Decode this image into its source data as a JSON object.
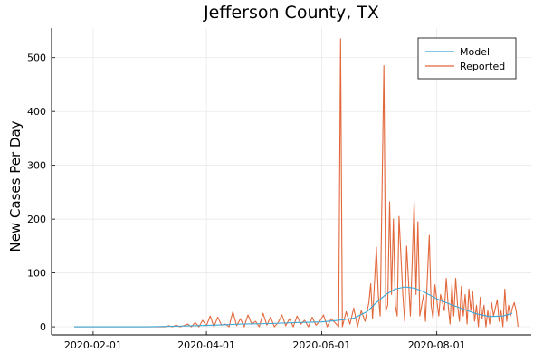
{
  "chart_data": {
    "type": "line",
    "title": "Jefferson County, TX",
    "xlabel": "",
    "ylabel": "New Cases Per Day",
    "x_axis": {
      "type": "date",
      "range": [
        "2020-01-10",
        "2020-09-20"
      ],
      "ticks": [
        "2020-02-01",
        "2020-04-01",
        "2020-06-01",
        "2020-08-01"
      ]
    },
    "ylim": [
      -15,
      555
    ],
    "y_ticks": [
      0,
      100,
      200,
      300,
      400,
      500
    ],
    "grid": true,
    "legend": {
      "placement": "top-right",
      "entries": [
        "Model",
        "Reported"
      ]
    },
    "series": [
      {
        "name": "Model",
        "color": "#3aa7d6",
        "points": [
          [
            "2020-01-22",
            0
          ],
          [
            "2020-03-01",
            0
          ],
          [
            "2020-03-15",
            1
          ],
          [
            "2020-03-25",
            2
          ],
          [
            "2020-04-05",
            3
          ],
          [
            "2020-04-20",
            5
          ],
          [
            "2020-05-05",
            6
          ],
          [
            "2020-05-20",
            8
          ],
          [
            "2020-06-01",
            9
          ],
          [
            "2020-06-10",
            12
          ],
          [
            "2020-06-18",
            16
          ],
          [
            "2020-06-25",
            28
          ],
          [
            "2020-06-30",
            45
          ],
          [
            "2020-07-05",
            60
          ],
          [
            "2020-07-10",
            70
          ],
          [
            "2020-07-15",
            74
          ],
          [
            "2020-07-20",
            72
          ],
          [
            "2020-07-25",
            65
          ],
          [
            "2020-08-01",
            52
          ],
          [
            "2020-08-08",
            42
          ],
          [
            "2020-08-15",
            33
          ],
          [
            "2020-08-22",
            24
          ],
          [
            "2020-08-29",
            19
          ],
          [
            "2020-09-05",
            20
          ],
          [
            "2020-09-10",
            25
          ]
        ]
      },
      {
        "name": "Reported",
        "color": "#e2683c",
        "points": [
          [
            "2020-01-22",
            0
          ],
          [
            "2020-03-01",
            0
          ],
          [
            "2020-03-10",
            0
          ],
          [
            "2020-03-12",
            2
          ],
          [
            "2020-03-14",
            0
          ],
          [
            "2020-03-16",
            3
          ],
          [
            "2020-03-18",
            0
          ],
          [
            "2020-03-20",
            2
          ],
          [
            "2020-03-22",
            5
          ],
          [
            "2020-03-24",
            0
          ],
          [
            "2020-03-26",
            8
          ],
          [
            "2020-03-28",
            0
          ],
          [
            "2020-03-30",
            12
          ],
          [
            "2020-04-01",
            2
          ],
          [
            "2020-04-03",
            20
          ],
          [
            "2020-04-05",
            0
          ],
          [
            "2020-04-07",
            18
          ],
          [
            "2020-04-09",
            3
          ],
          [
            "2020-04-11",
            5
          ],
          [
            "2020-04-13",
            0
          ],
          [
            "2020-04-15",
            28
          ],
          [
            "2020-04-17",
            2
          ],
          [
            "2020-04-19",
            15
          ],
          [
            "2020-04-21",
            0
          ],
          [
            "2020-04-23",
            22
          ],
          [
            "2020-04-25",
            5
          ],
          [
            "2020-04-27",
            10
          ],
          [
            "2020-04-29",
            0
          ],
          [
            "2020-05-01",
            25
          ],
          [
            "2020-05-03",
            3
          ],
          [
            "2020-05-05",
            18
          ],
          [
            "2020-05-07",
            0
          ],
          [
            "2020-05-09",
            8
          ],
          [
            "2020-05-11",
            22
          ],
          [
            "2020-05-13",
            2
          ],
          [
            "2020-05-15",
            15
          ],
          [
            "2020-05-17",
            0
          ],
          [
            "2020-05-19",
            20
          ],
          [
            "2020-05-21",
            5
          ],
          [
            "2020-05-23",
            12
          ],
          [
            "2020-05-25",
            0
          ],
          [
            "2020-05-27",
            18
          ],
          [
            "2020-05-29",
            3
          ],
          [
            "2020-05-31",
            10
          ],
          [
            "2020-06-02",
            22
          ],
          [
            "2020-06-04",
            0
          ],
          [
            "2020-06-06",
            15
          ],
          [
            "2020-06-08",
            8
          ],
          [
            "2020-06-10",
            0
          ],
          [
            "2020-06-11",
            535
          ],
          [
            "2020-06-12",
            0
          ],
          [
            "2020-06-14",
            28
          ],
          [
            "2020-06-16",
            5
          ],
          [
            "2020-06-18",
            35
          ],
          [
            "2020-06-20",
            0
          ],
          [
            "2020-06-22",
            30
          ],
          [
            "2020-06-24",
            10
          ],
          [
            "2020-06-26",
            45
          ],
          [
            "2020-06-27",
            80
          ],
          [
            "2020-06-28",
            15
          ],
          [
            "2020-06-30",
            148
          ],
          [
            "2020-07-01",
            60
          ],
          [
            "2020-07-02",
            20
          ],
          [
            "2020-07-04",
            485
          ],
          [
            "2020-07-05",
            30
          ],
          [
            "2020-07-06",
            40
          ],
          [
            "2020-07-07",
            232
          ],
          [
            "2020-07-08",
            60
          ],
          [
            "2020-07-09",
            200
          ],
          [
            "2020-07-10",
            40
          ],
          [
            "2020-07-11",
            20
          ],
          [
            "2020-07-12",
            205
          ],
          [
            "2020-07-14",
            60
          ],
          [
            "2020-07-15",
            10
          ],
          [
            "2020-07-16",
            150
          ],
          [
            "2020-07-18",
            20
          ],
          [
            "2020-07-20",
            232
          ],
          [
            "2020-07-21",
            60
          ],
          [
            "2020-07-22",
            195
          ],
          [
            "2020-07-23",
            20
          ],
          [
            "2020-07-25",
            60
          ],
          [
            "2020-07-26",
            10
          ],
          [
            "2020-07-28",
            170
          ],
          [
            "2020-07-29",
            40
          ],
          [
            "2020-07-30",
            15
          ],
          [
            "2020-07-31",
            78
          ],
          [
            "2020-08-02",
            20
          ],
          [
            "2020-08-03",
            60
          ],
          [
            "2020-08-05",
            30
          ],
          [
            "2020-08-06",
            90
          ],
          [
            "2020-08-07",
            40
          ],
          [
            "2020-08-08",
            5
          ],
          [
            "2020-08-09",
            80
          ],
          [
            "2020-08-10",
            20
          ],
          [
            "2020-08-11",
            90
          ],
          [
            "2020-08-12",
            40
          ],
          [
            "2020-08-13",
            10
          ],
          [
            "2020-08-14",
            75
          ],
          [
            "2020-08-15",
            20
          ],
          [
            "2020-08-16",
            60
          ],
          [
            "2020-08-17",
            5
          ],
          [
            "2020-08-18",
            70
          ],
          [
            "2020-08-19",
            30
          ],
          [
            "2020-08-20",
            65
          ],
          [
            "2020-08-21",
            10
          ],
          [
            "2020-08-22",
            40
          ],
          [
            "2020-08-23",
            0
          ],
          [
            "2020-08-24",
            55
          ],
          [
            "2020-08-25",
            15
          ],
          [
            "2020-08-26",
            40
          ],
          [
            "2020-08-27",
            0
          ],
          [
            "2020-08-28",
            30
          ],
          [
            "2020-08-29",
            5
          ],
          [
            "2020-08-30",
            45
          ],
          [
            "2020-08-31",
            20
          ],
          [
            "2020-09-02",
            50
          ],
          [
            "2020-09-03",
            10
          ],
          [
            "2020-09-04",
            30
          ],
          [
            "2020-09-05",
            0
          ],
          [
            "2020-09-06",
            70
          ],
          [
            "2020-09-07",
            10
          ],
          [
            "2020-09-08",
            40
          ],
          [
            "2020-09-09",
            20
          ],
          [
            "2020-09-10",
            35
          ],
          [
            "2020-09-11",
            45
          ],
          [
            "2020-09-12",
            30
          ],
          [
            "2020-09-13",
            0
          ]
        ]
      }
    ]
  }
}
